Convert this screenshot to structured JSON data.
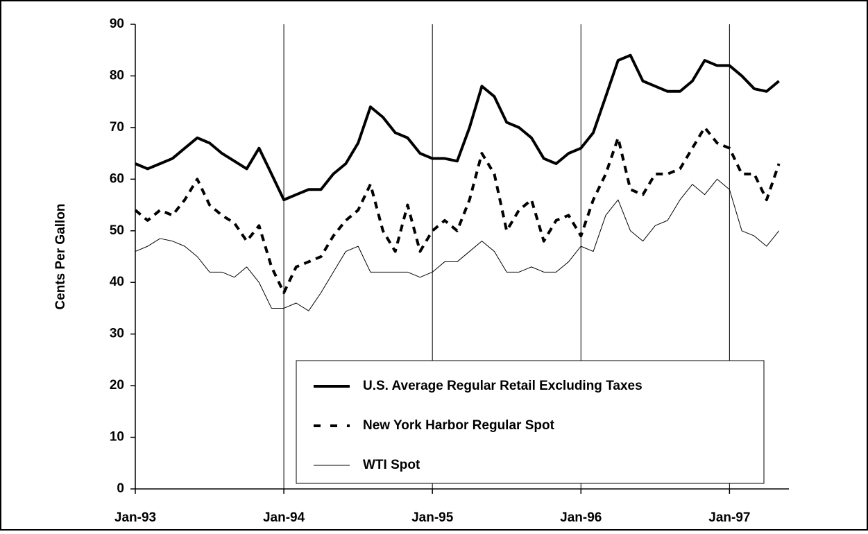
{
  "chart_data": {
    "type": "line",
    "y_label": "Cents Per Gallon",
    "x": [
      1993,
      1993.083,
      1993.167,
      1993.25,
      1993.333,
      1993.417,
      1993.5,
      1993.583,
      1993.667,
      1993.75,
      1993.833,
      1993.917,
      1994,
      1994.083,
      1994.167,
      1994.25,
      1994.333,
      1994.417,
      1994.5,
      1994.583,
      1994.667,
      1994.75,
      1994.833,
      1994.917,
      1995,
      1995.083,
      1995.167,
      1995.25,
      1995.333,
      1995.417,
      1995.5,
      1995.583,
      1995.667,
      1995.75,
      1995.833,
      1995.917,
      1996,
      1996.083,
      1996.167,
      1996.25,
      1996.333,
      1996.417,
      1996.5,
      1996.583,
      1996.667,
      1996.75,
      1996.833,
      1996.917,
      1997,
      1997.083,
      1997.167,
      1997.25,
      1997.333
    ],
    "series": [
      {
        "name": "U.S. Average Regular Retail Excluding Taxes",
        "color": "#000000",
        "width": 4,
        "dash": false,
        "values": [
          63,
          62,
          63,
          64,
          66,
          68,
          67,
          65,
          63.5,
          62,
          66,
          61,
          56,
          57,
          58,
          58,
          61,
          63,
          67,
          74,
          72,
          69,
          68,
          65,
          64,
          64,
          63.5,
          70,
          78,
          76,
          71,
          70,
          68,
          64,
          63,
          65,
          66,
          69,
          76,
          83,
          84,
          79,
          78,
          77,
          77,
          79,
          83,
          82,
          82,
          80,
          77.5,
          77,
          79
        ]
      },
      {
        "name": "New York Harbor Regular Spot",
        "color": "#000000",
        "width": 4,
        "dash": true,
        "values": [
          54,
          52,
          54,
          53,
          56,
          60,
          55,
          53,
          51.5,
          48,
          51,
          43,
          38,
          43,
          44,
          45,
          49,
          52,
          54,
          59,
          50,
          46,
          55,
          46,
          50,
          52,
          50,
          56,
          65,
          61,
          50,
          54,
          56,
          48,
          52,
          53,
          49,
          56,
          61,
          68,
          58,
          57,
          61,
          61,
          62,
          66,
          70,
          67,
          66,
          61,
          61,
          56,
          63
        ]
      },
      {
        "name": "WTI Spot",
        "color": "#000000",
        "width": 1,
        "dash": false,
        "values": [
          46,
          47,
          48.5,
          48,
          47,
          45,
          42,
          42,
          41,
          43,
          40,
          35,
          35,
          36,
          34.5,
          38,
          42,
          46,
          47,
          42,
          42,
          42,
          42,
          41,
          42,
          44,
          44,
          46,
          48,
          46,
          42,
          42,
          43,
          42,
          42,
          44,
          47,
          46,
          53,
          56,
          50,
          48,
          51,
          52,
          56,
          59,
          57,
          60,
          58,
          50,
          49,
          47,
          50
        ]
      }
    ],
    "xlim": [
      1993,
      1997.4
    ],
    "xticks": [
      {
        "value": 1993,
        "label": "Jan-93"
      },
      {
        "value": 1994,
        "label": "Jan-94"
      },
      {
        "value": 1995,
        "label": "Jan-95"
      },
      {
        "value": 1996,
        "label": "Jan-96"
      },
      {
        "value": 1997,
        "label": "Jan-97"
      }
    ],
    "ylim": [
      0,
      90
    ],
    "yticks": [
      0,
      10,
      20,
      30,
      40,
      50,
      60,
      70,
      80,
      90
    ],
    "x_grid": true
  }
}
